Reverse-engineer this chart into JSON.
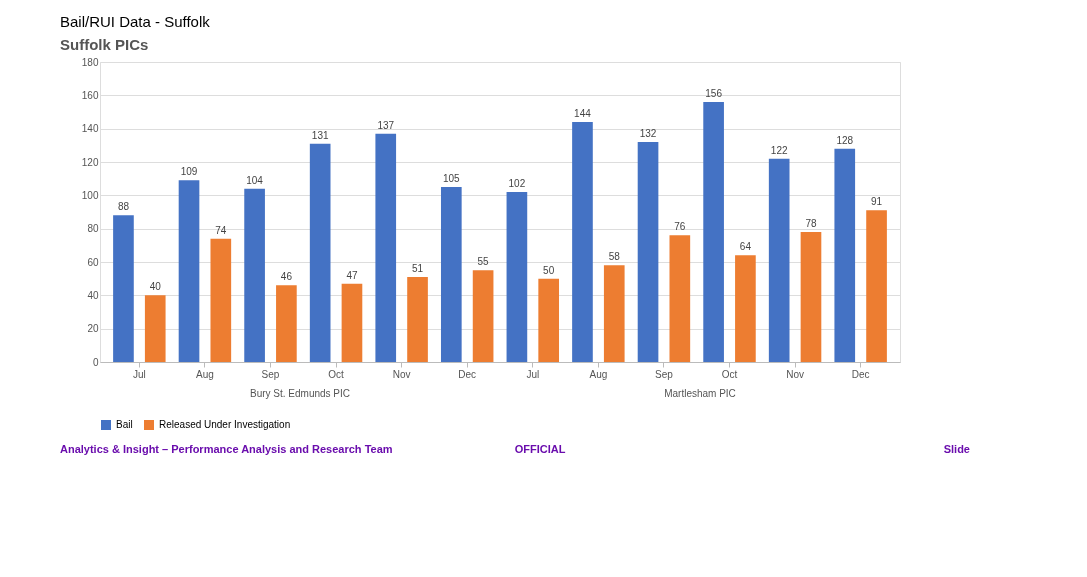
{
  "chart_data": {
    "type": "bar",
    "title": "Bail/RUI Data - Suffolk",
    "subtitle": "Suffolk PICs",
    "categories": [
      "Jul",
      "Aug",
      "Sep",
      "Oct",
      "Nov",
      "Dec",
      "Jul",
      "Aug",
      "Sep",
      "Oct",
      "Nov",
      "Dec"
    ],
    "series": [
      {
        "name": "Bail",
        "color": "#4472c4",
        "values": [
          88,
          109,
          104,
          131,
          137,
          105,
          102,
          144,
          132,
          156,
          122,
          128
        ]
      },
      {
        "name": "Released Under Investigation",
        "color": "#ed7d31",
        "values": [
          40,
          74,
          46,
          47,
          51,
          55,
          50,
          58,
          76,
          64,
          78,
          91
        ]
      }
    ],
    "ylim": [
      0,
      180
    ],
    "yticks": [
      0,
      20,
      40,
      60,
      80,
      100,
      120,
      140,
      160,
      180
    ],
    "grid": "y",
    "legend": "bottom",
    "data_labels": true,
    "annotations": [
      "Bury St. Edmunds PIC",
      "Martlesham PIC",
      "Analytics & Insight – Performance Analysis and Research Team",
      "OFFICIAL",
      "Slide"
    ]
  }
}
